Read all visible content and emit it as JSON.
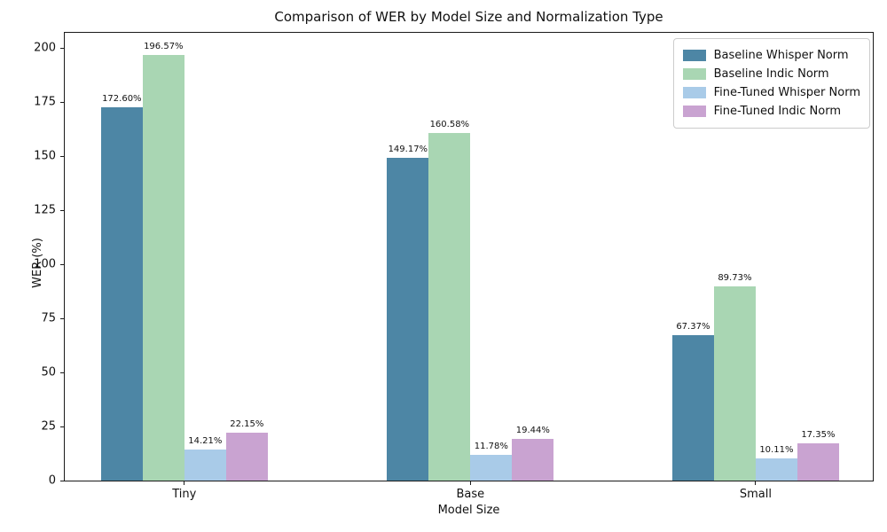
{
  "chart_data": {
    "type": "bar",
    "title": "Comparison of WER by Model Size and Normalization Type",
    "xlabel": "Model Size",
    "ylabel": "WER (%)",
    "categories": [
      "Tiny",
      "Base",
      "Small"
    ],
    "series": [
      {
        "name": "Baseline Whisper Norm",
        "color": "#4d86a5",
        "values": [
          172.6,
          149.17,
          67.37
        ]
      },
      {
        "name": "Baseline Indic Norm",
        "color": "#a9d6b3",
        "values": [
          196.57,
          160.58,
          89.73
        ]
      },
      {
        "name": "Fine-Tuned Whisper Norm",
        "color": "#a9cbe8",
        "values": [
          14.21,
          11.78,
          10.11
        ]
      },
      {
        "name": "Fine-Tuned Indic Norm",
        "color": "#c9a3d1",
        "values": [
          22.15,
          19.44,
          17.35
        ]
      }
    ],
    "bar_labels": [
      [
        "172.60%",
        "149.17%",
        "67.37%"
      ],
      [
        "196.57%",
        "160.58%",
        "89.73%"
      ],
      [
        "14.21%",
        "11.78%",
        "10.11%"
      ],
      [
        "22.15%",
        "19.44%",
        "17.35%"
      ]
    ],
    "yticks": [
      0,
      25,
      50,
      75,
      100,
      125,
      150,
      175,
      200
    ],
    "ylim": [
      0,
      207
    ],
    "legend_position": "upper right",
    "grid": false
  }
}
